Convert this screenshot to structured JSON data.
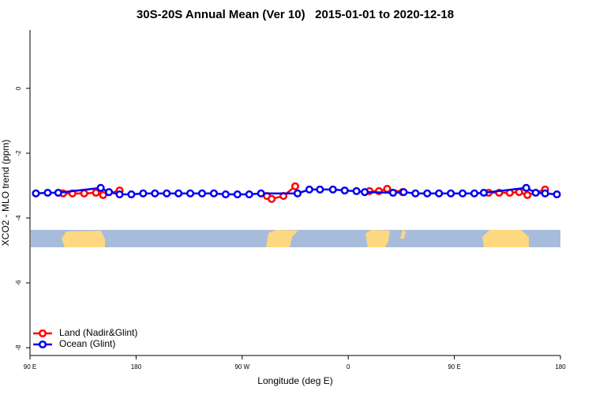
{
  "chart_data": {
    "type": "line",
    "title": "30S-20S Annual Mean (Ver 10)   2015-01-01 to 2020-12-18",
    "xlabel": "Longitude (deg E)",
    "ylabel": "XCO2 - MLO trend (ppm)",
    "xlim": [
      90,
      540
    ],
    "ylim": [
      -8.24,
      1.8
    ],
    "xticks": [
      {
        "value": 90,
        "label": "90 E"
      },
      180,
      {
        "value": 270,
        "label": "90 W"
      },
      {
        "value": 360,
        "label": "0"
      },
      {
        "value": 450,
        "label": "90 E"
      },
      {
        "value": 540,
        "label": "180"
      }
    ],
    "yticks": [
      0,
      -2,
      -4,
      -6,
      -8
    ],
    "legend": "bottom-left",
    "series": [
      {
        "name": "Land (Nadir&Glint)",
        "color": "#ff0000",
        "x": [
          118,
          126,
          136,
          146,
          152,
          166,
          null,
          291,
          295,
          305,
          315,
          null,
          378,
          386,
          393,
          406,
          null,
          479,
          488,
          497,
          505,
          512,
          527
        ],
        "values": [
          -3.24,
          -3.24,
          -3.24,
          -3.22,
          -3.29,
          -3.15,
          null,
          -3.32,
          -3.41,
          -3.32,
          -3.02,
          null,
          -3.17,
          -3.17,
          -3.1,
          -3.2,
          null,
          -3.22,
          -3.22,
          -3.22,
          -3.2,
          -3.29,
          -3.12
        ]
      },
      {
        "name": "Ocean (Glint)",
        "color": "#0000ee",
        "x": [
          95,
          105,
          114,
          150,
          157,
          166,
          176,
          186,
          196,
          206,
          216,
          226,
          236,
          246,
          256,
          266,
          276,
          286,
          317,
          327,
          336,
          347,
          357,
          367,
          374,
          398,
          407,
          417,
          427,
          437,
          447,
          457,
          467,
          475,
          511,
          519,
          527,
          537
        ],
        "values": [
          -3.24,
          -3.22,
          -3.22,
          -3.07,
          -3.2,
          -3.27,
          -3.27,
          -3.24,
          -3.24,
          -3.24,
          -3.24,
          -3.24,
          -3.24,
          -3.24,
          -3.27,
          -3.27,
          -3.27,
          -3.24,
          -3.24,
          -3.12,
          -3.12,
          -3.12,
          -3.15,
          -3.17,
          -3.2,
          -3.22,
          -3.2,
          -3.24,
          -3.24,
          -3.24,
          -3.24,
          -3.24,
          -3.24,
          -3.22,
          -3.07,
          -3.22,
          -3.24,
          -3.27
        ]
      }
    ]
  }
}
